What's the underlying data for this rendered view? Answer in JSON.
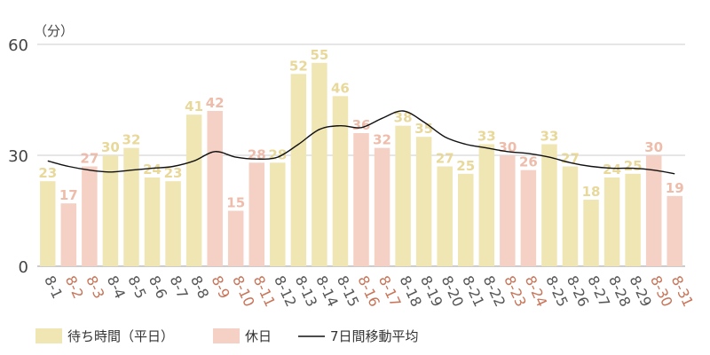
{
  "chart_data": {
    "type": "bar",
    "unit_label": "（分）",
    "ylim": [
      0,
      60
    ],
    "yticks": [
      0,
      30,
      60
    ],
    "grid": true,
    "legend_position": "bottom-left",
    "categories": [
      "8-1",
      "8-2",
      "8-3",
      "8-4",
      "8-5",
      "8-6",
      "8-7",
      "8-8",
      "8-9",
      "8-10",
      "8-11",
      "8-12",
      "8-13",
      "8-14",
      "8-15",
      "8-16",
      "8-17",
      "8-18",
      "8-19",
      "8-20",
      "8-21",
      "8-22",
      "8-23",
      "8-24",
      "8-25",
      "8-26",
      "8-27",
      "8-28",
      "8-29",
      "8-30",
      "8-31"
    ],
    "values": [
      23,
      17,
      27,
      30,
      32,
      24,
      23,
      41,
      42,
      15,
      28,
      28,
      52,
      55,
      46,
      36,
      32,
      38,
      35,
      27,
      25,
      33,
      30,
      26,
      33,
      27,
      18,
      24,
      25,
      30,
      19
    ],
    "holiday": [
      false,
      true,
      true,
      false,
      false,
      false,
      false,
      false,
      true,
      true,
      true,
      false,
      false,
      false,
      false,
      true,
      true,
      false,
      false,
      false,
      false,
      false,
      true,
      true,
      false,
      false,
      false,
      false,
      false,
      true,
      true
    ],
    "moving_average": [
      28.5,
      27,
      26,
      25.5,
      26,
      26.5,
      27,
      28.5,
      31,
      29.5,
      29,
      29.5,
      33,
      37,
      38,
      37.5,
      40,
      42,
      39,
      35,
      33,
      32,
      31,
      30.5,
      29.5,
      28,
      27,
      26.5,
      26.5,
      26,
      25
    ],
    "series": [
      {
        "name": "待ち時間（平日）",
        "color": "#f0e6b4"
      },
      {
        "name": "休日",
        "color": "#f5d0c4"
      },
      {
        "name": "7日間移動平均",
        "color": "#111111"
      }
    ],
    "colors": {
      "weekday_bar": "#f0e6b4",
      "holiday_bar": "#f5d0c4",
      "weekday_label": "#e8d89a",
      "holiday_label": "#eebcaa",
      "weekday_tick": "#555555",
      "holiday_tick": "#c87458",
      "grid": "#cccccc",
      "line": "#111111"
    }
  }
}
